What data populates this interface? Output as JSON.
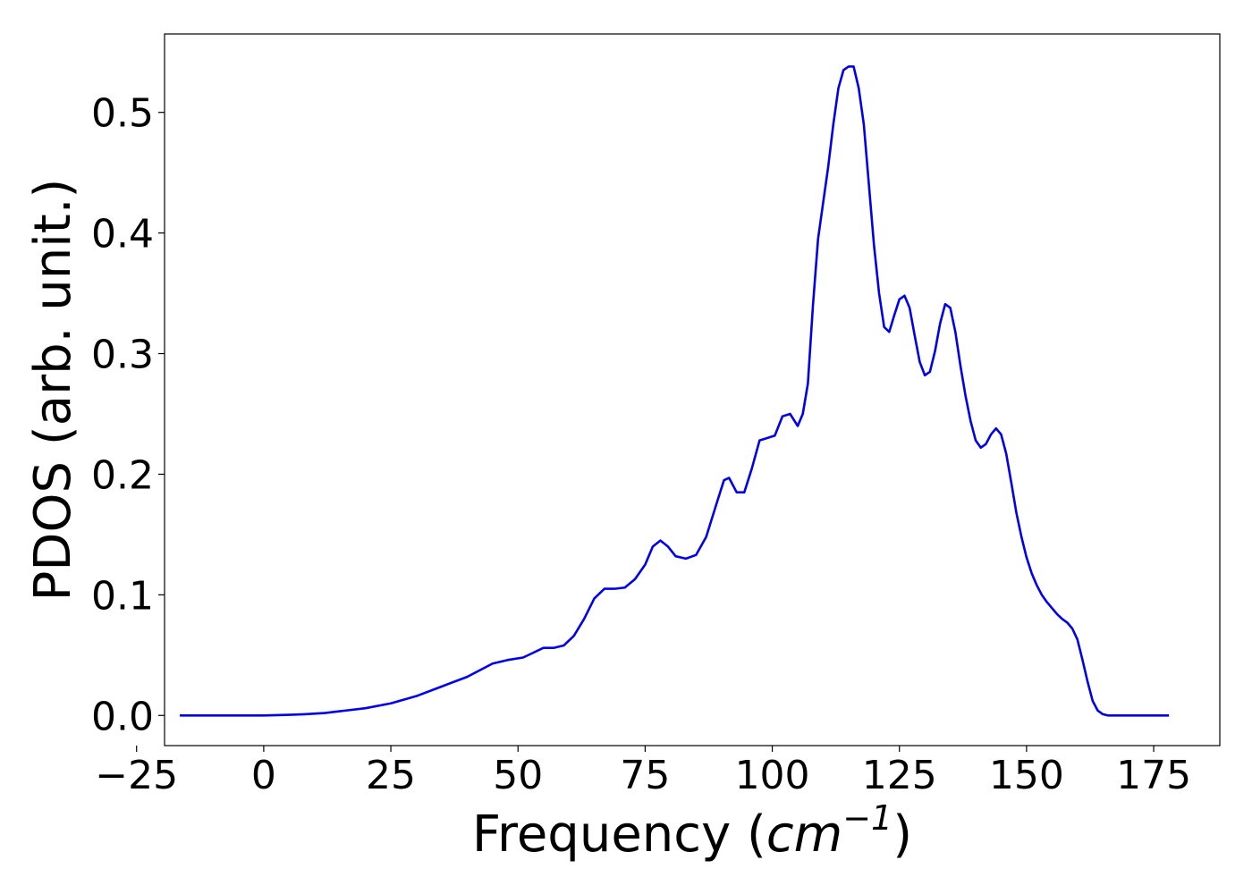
{
  "chart_data": {
    "type": "line",
    "title": "",
    "xlabel": {
      "prefix": "Frequency (",
      "unit_base": "cm",
      "unit_exponent": "−1",
      "suffix": ")"
    },
    "ylabel": "PDOS (arb. unit.)",
    "xlim": [
      -19.5,
      188
    ],
    "ylim": [
      -0.025,
      0.565
    ],
    "xticks": [
      -25,
      0,
      25,
      50,
      75,
      100,
      125,
      150,
      175
    ],
    "xtick_labels": [
      "−25",
      "0",
      "25",
      "50",
      "75",
      "100",
      "125",
      "150",
      "175"
    ],
    "yticks": [
      0.0,
      0.1,
      0.2,
      0.3,
      0.4,
      0.5
    ],
    "ytick_labels": [
      "0.0",
      "0.1",
      "0.2",
      "0.3",
      "0.4",
      "0.5"
    ],
    "grid": false,
    "legend": "none",
    "series": [
      {
        "color": "#0000ee",
        "x": [
          -16.5,
          -10,
          -5,
          0,
          5,
          8,
          12,
          16,
          20,
          25,
          30,
          35,
          40,
          45,
          48,
          51,
          53,
          55,
          57,
          59,
          61,
          63,
          65,
          67,
          69,
          71,
          73,
          75,
          76.5,
          78,
          79.5,
          81,
          83,
          85,
          87,
          89,
          90.5,
          91.5,
          93,
          94.5,
          96,
          97.5,
          99,
          100.5,
          102,
          103.5,
          105,
          106,
          107,
          108,
          109,
          110,
          111,
          112,
          113,
          114,
          115,
          116,
          117,
          118,
          119,
          120,
          121,
          122,
          123,
          124,
          125,
          126,
          127,
          128,
          129,
          130,
          131,
          132,
          133,
          134,
          135,
          136,
          137,
          138,
          139,
          140,
          141,
          142,
          143,
          144,
          145,
          146,
          147,
          148,
          149,
          150,
          151,
          152,
          153,
          154,
          155,
          156,
          157,
          158,
          159,
          160,
          161,
          162,
          163,
          164,
          165,
          166,
          167,
          168,
          170,
          175,
          178
        ],
        "y": [
          0.0,
          0.0,
          0.0,
          0.0,
          0.0005,
          0.001,
          0.002,
          0.004,
          0.006,
          0.01,
          0.016,
          0.024,
          0.032,
          0.043,
          0.046,
          0.048,
          0.052,
          0.056,
          0.056,
          0.058,
          0.066,
          0.08,
          0.097,
          0.105,
          0.105,
          0.106,
          0.113,
          0.125,
          0.14,
          0.145,
          0.14,
          0.132,
          0.13,
          0.133,
          0.148,
          0.175,
          0.195,
          0.197,
          0.185,
          0.185,
          0.205,
          0.228,
          0.23,
          0.232,
          0.248,
          0.25,
          0.24,
          0.25,
          0.275,
          0.34,
          0.395,
          0.425,
          0.455,
          0.49,
          0.52,
          0.535,
          0.538,
          0.538,
          0.52,
          0.49,
          0.44,
          0.39,
          0.35,
          0.322,
          0.318,
          0.332,
          0.345,
          0.348,
          0.338,
          0.315,
          0.293,
          0.282,
          0.285,
          0.302,
          0.325,
          0.341,
          0.338,
          0.318,
          0.29,
          0.265,
          0.244,
          0.228,
          0.222,
          0.225,
          0.233,
          0.238,
          0.233,
          0.217,
          0.193,
          0.168,
          0.148,
          0.131,
          0.118,
          0.108,
          0.1,
          0.094,
          0.089,
          0.084,
          0.08,
          0.077,
          0.072,
          0.063,
          0.046,
          0.028,
          0.012,
          0.004,
          0.001,
          0.0,
          0.0,
          0.0,
          0.0,
          0.0,
          0.0
        ]
      }
    ]
  }
}
